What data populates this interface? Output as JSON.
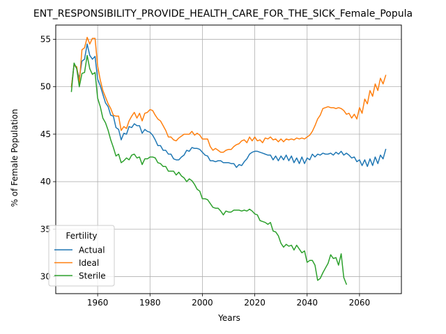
{
  "chart_data": {
    "type": "line",
    "title": "ENT_RESPONSIBILITY_PROVIDE_HEALTH_CARE_FOR_THE_SICK_Female_Popula",
    "xlabel": "Years",
    "ylabel": "% of Female Population",
    "xlim": [
      1944,
      2076
    ],
    "ylim": [
      28.2,
      56.5
    ],
    "xticks": [
      1960,
      1980,
      2000,
      2020,
      2040,
      2060
    ],
    "yticks": [
      30,
      35,
      40,
      45,
      50,
      55
    ],
    "grid": true,
    "legend": {
      "title": "Fertility",
      "position": "lower-left"
    },
    "series": [
      {
        "name": "Actual",
        "color": "#1f77b4",
        "x": [
          1950,
          1951,
          1952,
          1953,
          1954,
          1955,
          1956,
          1957,
          1958,
          1959,
          1960,
          1961,
          1962,
          1963,
          1964,
          1965,
          1966,
          1967,
          1968,
          1969,
          1970,
          1971,
          1972,
          1973,
          1974,
          1975,
          1976,
          1977,
          1978,
          1979,
          1980,
          1981,
          1982,
          1983,
          1984,
          1985,
          1986,
          1987,
          1988,
          1989,
          1990,
          1991,
          1992,
          1993,
          1994,
          1995,
          1996,
          1997,
          1998,
          1999,
          2000,
          2001,
          2002,
          2003,
          2004,
          2005,
          2006,
          2007,
          2008,
          2009,
          2010,
          2011,
          2012,
          2013,
          2014,
          2015,
          2016,
          2017,
          2018,
          2019,
          2020,
          2021,
          2022,
          2023,
          2024,
          2025,
          2026,
          2027,
          2028,
          2029,
          2030,
          2031,
          2032,
          2033,
          2034,
          2035,
          2036,
          2037,
          2038,
          2039,
          2040,
          2041,
          2042,
          2043,
          2044,
          2045,
          2046,
          2047,
          2048,
          2049,
          2050,
          2051,
          2052,
          2053,
          2054,
          2055,
          2056,
          2057,
          2058,
          2059,
          2060,
          2061,
          2062,
          2063,
          2064,
          2065,
          2066,
          2067,
          2068,
          2069,
          2070
        ],
        "values": [
          50.0,
          52.4,
          51.9,
          50.9,
          52.7,
          52.9,
          54.5,
          53.3,
          52.9,
          53.2,
          50.8,
          50.1,
          49.2,
          48.3,
          47.9,
          47.0,
          46.9,
          45.7,
          45.5,
          44.4,
          45.1,
          45.0,
          45.8,
          45.7,
          46.1,
          45.9,
          45.9,
          45.1,
          45.5,
          45.3,
          45.2,
          44.9,
          44.4,
          43.8,
          43.8,
          43.3,
          43.3,
          42.9,
          42.9,
          42.4,
          42.3,
          42.3,
          42.6,
          42.8,
          43.3,
          43.2,
          43.6,
          43.5,
          43.5,
          43.4,
          43.1,
          42.8,
          42.7,
          42.2,
          42.2,
          42.1,
          42.2,
          42.2,
          42.0,
          42.0,
          42.0,
          41.9,
          41.9,
          41.5,
          41.8,
          41.7,
          42.1,
          42.4,
          42.9,
          43.1,
          43.2,
          43.2,
          43.1,
          43.0,
          42.9,
          42.8,
          42.8,
          42.3,
          42.7,
          42.2,
          42.7,
          42.3,
          42.8,
          42.2,
          42.7,
          42.0,
          42.5,
          41.9,
          42.6,
          41.9,
          42.5,
          42.3,
          42.9,
          42.6,
          42.9,
          42.8,
          43.0,
          42.9,
          42.9,
          43.0,
          42.8,
          43.1,
          42.9,
          43.2,
          42.8,
          43.0,
          42.8,
          42.5,
          42.6,
          42.1,
          42.3,
          41.7,
          42.3,
          41.6,
          42.4,
          41.7,
          42.6,
          41.9,
          42.8,
          42.4,
          43.4
        ]
      },
      {
        "name": "Ideal",
        "color": "#ff7f0e",
        "x": [
          1950,
          1951,
          1952,
          1953,
          1954,
          1955,
          1956,
          1957,
          1958,
          1959,
          1960,
          1961,
          1962,
          1963,
          1964,
          1965,
          1966,
          1967,
          1968,
          1969,
          1970,
          1971,
          1972,
          1973,
          1974,
          1975,
          1976,
          1977,
          1978,
          1979,
          1980,
          1981,
          1982,
          1983,
          1984,
          1985,
          1986,
          1987,
          1988,
          1989,
          1990,
          1991,
          1992,
          1993,
          1994,
          1995,
          1996,
          1997,
          1998,
          1999,
          2000,
          2001,
          2002,
          2003,
          2004,
          2005,
          2006,
          2007,
          2008,
          2009,
          2010,
          2011,
          2012,
          2013,
          2014,
          2015,
          2016,
          2017,
          2018,
          2019,
          2020,
          2021,
          2022,
          2023,
          2024,
          2025,
          2026,
          2027,
          2028,
          2029,
          2030,
          2031,
          2032,
          2033,
          2034,
          2035,
          2036,
          2037,
          2038,
          2039,
          2040,
          2041,
          2042,
          2043,
          2044,
          2045,
          2046,
          2047,
          2048,
          2049,
          2050,
          2051,
          2052,
          2053,
          2054,
          2055,
          2056,
          2057,
          2058,
          2059,
          2060,
          2061,
          2062,
          2063,
          2064,
          2065,
          2066,
          2067,
          2068,
          2069,
          2070
        ],
        "values": [
          50.0,
          52.3,
          52.1,
          50.4,
          53.9,
          54.1,
          55.2,
          54.5,
          55.1,
          55.1,
          52.2,
          50.7,
          49.6,
          48.9,
          48.2,
          47.7,
          47.0,
          46.9,
          46.9,
          45.4,
          45.8,
          45.6,
          46.4,
          46.9,
          47.3,
          46.7,
          47.2,
          46.4,
          47.2,
          47.3,
          47.6,
          47.5,
          47.0,
          46.6,
          46.4,
          45.9,
          45.4,
          44.7,
          44.7,
          44.4,
          44.3,
          44.6,
          44.8,
          45.0,
          45.0,
          45.0,
          45.3,
          44.9,
          45.1,
          44.9,
          44.5,
          44.5,
          44.5,
          43.7,
          43.3,
          43.5,
          43.3,
          43.1,
          43.1,
          43.3,
          43.4,
          43.4,
          43.7,
          43.9,
          44.0,
          44.3,
          44.4,
          44.1,
          44.7,
          44.3,
          44.7,
          44.3,
          44.4,
          44.1,
          44.6,
          44.5,
          44.7,
          44.4,
          44.5,
          44.2,
          44.5,
          44.2,
          44.5,
          44.4,
          44.5,
          44.4,
          44.6,
          44.5,
          44.6,
          44.5,
          44.7,
          44.9,
          45.3,
          45.9,
          46.6,
          47.0,
          47.7,
          47.8,
          47.9,
          47.8,
          47.8,
          47.7,
          47.8,
          47.7,
          47.5,
          47.1,
          47.2,
          46.7,
          47.1,
          46.6,
          47.8,
          47.2,
          48.7,
          48.2,
          49.6,
          49.0,
          50.3,
          49.6,
          50.9,
          50.3,
          51.2
        ]
      },
      {
        "name": "Sterile",
        "color": "#2ca02c",
        "x": [
          1950,
          1951,
          1952,
          1953,
          1954,
          1955,
          1956,
          1957,
          1958,
          1959,
          1960,
          1961,
          1962,
          1963,
          1964,
          1965,
          1966,
          1967,
          1968,
          1969,
          1970,
          1971,
          1972,
          1973,
          1974,
          1975,
          1976,
          1977,
          1978,
          1979,
          1980,
          1981,
          1982,
          1983,
          1984,
          1985,
          1986,
          1987,
          1988,
          1989,
          1990,
          1991,
          1992,
          1993,
          1994,
          1995,
          1996,
          1997,
          1998,
          1999,
          2000,
          2001,
          2002,
          2003,
          2004,
          2005,
          2006,
          2007,
          2008,
          2009,
          2010,
          2011,
          2012,
          2013,
          2014,
          2015,
          2016,
          2017,
          2018,
          2019,
          2020,
          2021,
          2022,
          2023,
          2024,
          2025,
          2026,
          2027,
          2028,
          2029,
          2030,
          2031,
          2032,
          2033,
          2034,
          2035,
          2036,
          2037,
          2038,
          2039,
          2040,
          2041,
          2042,
          2043,
          2044,
          2045,
          2046,
          2047,
          2048,
          2049,
          2050,
          2051,
          2052,
          2053,
          2054,
          2055
        ],
        "values": [
          49.5,
          52.5,
          51.9,
          50.0,
          51.4,
          51.5,
          53.3,
          51.9,
          51.3,
          51.5,
          48.8,
          47.9,
          46.7,
          46.2,
          45.4,
          44.4,
          43.6,
          42.7,
          42.9,
          42.0,
          42.2,
          42.5,
          42.3,
          42.8,
          42.9,
          42.5,
          42.6,
          41.8,
          42.4,
          42.4,
          42.6,
          42.6,
          42.5,
          42.0,
          41.9,
          41.6,
          41.6,
          41.1,
          41.1,
          41.1,
          40.7,
          41.0,
          40.6,
          40.4,
          40.0,
          40.3,
          40.1,
          39.7,
          39.2,
          39.0,
          38.2,
          38.2,
          38.1,
          37.7,
          37.3,
          37.2,
          37.2,
          36.9,
          36.5,
          36.9,
          36.8,
          36.8,
          37.0,
          37.0,
          37.0,
          36.9,
          37.0,
          36.9,
          37.1,
          36.9,
          36.6,
          36.5,
          35.9,
          35.8,
          35.7,
          35.5,
          35.7,
          34.8,
          34.7,
          34.3,
          33.5,
          33.1,
          33.4,
          33.2,
          33.3,
          32.8,
          33.3,
          32.9,
          32.5,
          32.7,
          31.5,
          31.7,
          31.7,
          31.2,
          29.6,
          29.8,
          30.4,
          30.9,
          31.4,
          32.3,
          31.9,
          32.0,
          31.2,
          32.4,
          29.9,
          29.2
        ]
      }
    ]
  }
}
